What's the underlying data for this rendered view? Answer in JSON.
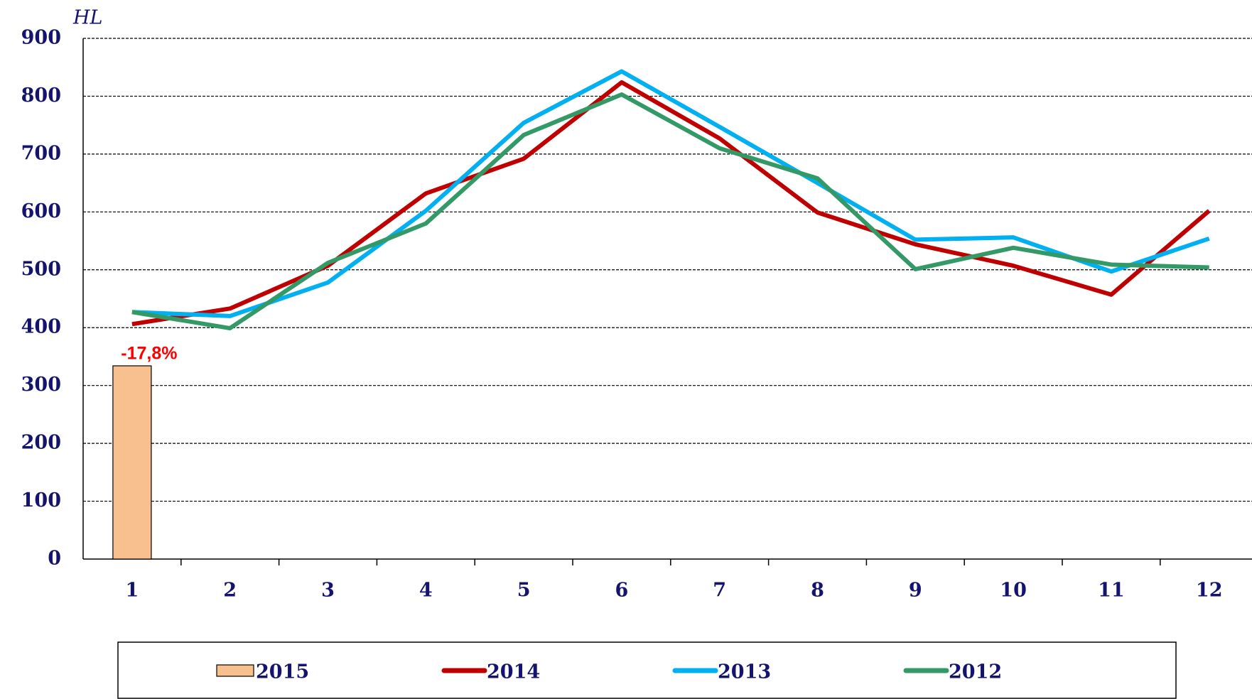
{
  "chart_data": {
    "type": "line",
    "y_label": "HL",
    "categories": [
      "1",
      "2",
      "3",
      "4",
      "5",
      "6",
      "7",
      "8",
      "9",
      "10",
      "11",
      "12"
    ],
    "series": [
      {
        "name": "2015",
        "type": "bar",
        "color": "#f9c08f",
        "values": [
          334,
          null,
          null,
          null,
          null,
          null,
          null,
          null,
          null,
          null,
          null,
          null
        ]
      },
      {
        "name": "2014",
        "color": "#c00000",
        "values": [
          406,
          433,
          507,
          632,
          692,
          824,
          727,
          599,
          544,
          507,
          457,
          602
        ]
      },
      {
        "name": "2013",
        "color": "#00b0f0",
        "values": [
          427,
          420,
          478,
          602,
          754,
          843,
          747,
          650,
          552,
          556,
          497,
          554
        ]
      },
      {
        "name": "2012",
        "color": "#339966",
        "values": [
          427,
          399,
          512,
          580,
          733,
          803,
          710,
          658,
          501,
          538,
          509,
          504
        ]
      }
    ],
    "annotation": "-17,8%",
    "ylim": [
      0,
      900
    ],
    "yticks": [
      0,
      100,
      200,
      300,
      400,
      500,
      600,
      700,
      800,
      900
    ],
    "grid": true,
    "legend": "bottom"
  }
}
